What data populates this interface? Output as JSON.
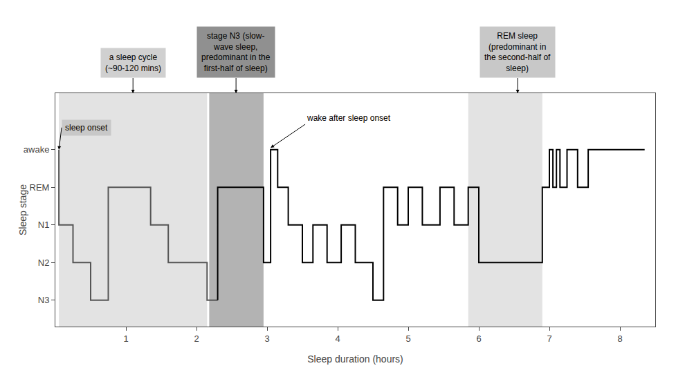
{
  "chart_data": {
    "type": "line",
    "xlabel": "Sleep duration (hours)",
    "ylabel": "Sleep stage",
    "xlim": [
      0,
      8.5
    ],
    "ylim": [
      0.3,
      6.5
    ],
    "xticks": [
      1,
      2,
      3,
      4,
      5,
      6,
      7,
      8
    ],
    "yticks": [
      {
        "value": 1,
        "label": "N3"
      },
      {
        "value": 2,
        "label": "N2"
      },
      {
        "value": 3,
        "label": "N1"
      },
      {
        "value": 4,
        "label": "REM"
      },
      {
        "value": 5,
        "label": "awake"
      }
    ],
    "grid": false,
    "series": [
      {
        "color": "#555555",
        "x": [
          0.05,
          0.05,
          0.25,
          0.25,
          0.5,
          0.5,
          0.75,
          0.75,
          1.35,
          1.35,
          1.6,
          1.6,
          2.15,
          2.15,
          2.3
        ],
        "values": [
          5,
          3,
          3,
          2,
          2,
          1,
          1,
          4,
          4,
          3,
          3,
          2,
          2,
          1,
          1
        ]
      },
      {
        "color": "#000000",
        "x": [
          2.3,
          2.3,
          2.95,
          2.95,
          3.05,
          3.05,
          3.15,
          3.15,
          3.3,
          3.3,
          3.5,
          3.5,
          3.65,
          3.65,
          3.85,
          3.85,
          4.05,
          4.05,
          4.25,
          4.25,
          4.5,
          4.5,
          4.65,
          4.65,
          4.85,
          4.85,
          5.0,
          5.0,
          5.2,
          5.2,
          5.45,
          5.45,
          5.65,
          5.65,
          5.85,
          5.85,
          6.0,
          6.0,
          6.9,
          6.9,
          7.0,
          7.0,
          7.05,
          7.05,
          7.1,
          7.1,
          7.15,
          7.15,
          7.25,
          7.25,
          7.4,
          7.4,
          7.55,
          7.55,
          8.35
        ],
        "values": [
          1,
          4,
          4,
          2,
          2,
          5,
          5,
          4,
          4,
          3,
          3,
          2,
          2,
          3,
          3,
          2,
          2,
          3,
          3,
          2,
          2,
          1,
          1,
          4,
          4,
          3,
          3,
          4,
          4,
          3,
          3,
          4,
          4,
          3,
          3,
          4,
          4,
          2,
          2,
          4,
          4,
          5,
          5,
          4,
          4,
          5,
          5,
          4,
          4,
          5,
          5,
          4,
          4,
          5,
          5
        ]
      }
    ],
    "bands": [
      {
        "x0": 0.05,
        "x1": 2.15,
        "color": "#d0d0d0"
      },
      {
        "x0": 2.18,
        "x1": 2.95,
        "color": "#808080"
      },
      {
        "x0": 5.85,
        "x1": 6.9,
        "color": "#d0d0d0"
      }
    ],
    "annotations": [
      {
        "text": "sleep onset",
        "x": 0.05,
        "y": 5,
        "color": "#c8c8c8"
      },
      {
        "text": "wake after sleep onset",
        "x": 3.05,
        "y": 5.05
      },
      {
        "text": "a sleep cycle\n(~90-120 mins)",
        "x": 1.1,
        "color": "#d0d0d0"
      },
      {
        "text": "stage N3 (slow-\nwave sleep,\npredominant in the\nfirst-half of sleep)",
        "x": 2.56,
        "color": "#909090"
      },
      {
        "text": "REM sleep\n(predominant in\nthe second-half of\nsleep)",
        "x": 6.55,
        "color": "#c8c8c8"
      }
    ]
  }
}
